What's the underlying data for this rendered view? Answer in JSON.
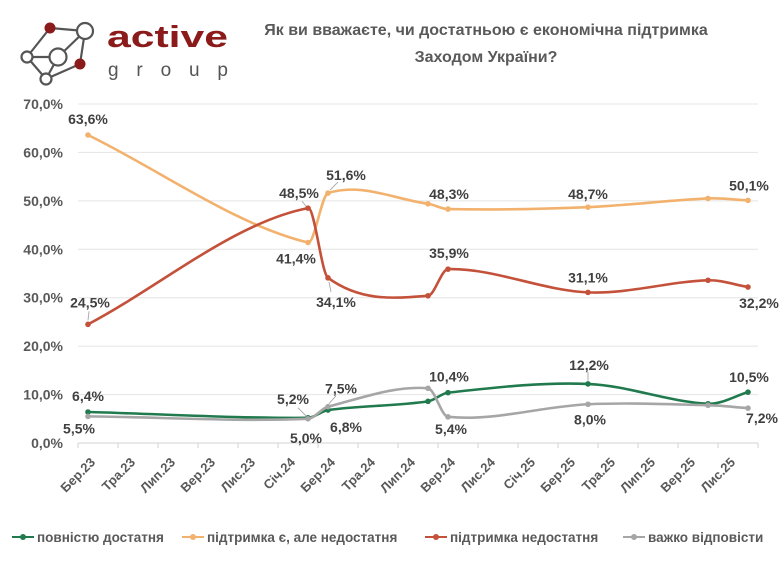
{
  "logo": {
    "brand_main": "active",
    "brand_sub": "group",
    "primary_color": "#8B1A1A",
    "secondary_color": "#555555"
  },
  "chart_data": {
    "type": "line",
    "title_lines": [
      "Як ви вважаєте, чи достатньою є економічна підтримка",
      "Заходом України?"
    ],
    "xlabel": "",
    "ylabel": "",
    "x_range": [
      "2023-03",
      "2025-12"
    ],
    "categories": [
      "Бер.23",
      "Тра.23",
      "Лип.23",
      "Вер.23",
      "Лис.23",
      "Січ.24",
      "Бер.24",
      "Тра.24",
      "Лип.24",
      "Вер.24",
      "Лис.24",
      "Січ.25",
      "Бер.25",
      "Тра.25",
      "Лип.25",
      "Вер.25",
      "Лис.25"
    ],
    "ylim": [
      0,
      70
    ],
    "yticks": [
      0,
      10,
      20,
      30,
      40,
      50,
      60,
      70
    ],
    "ytick_labels": [
      "0,0%",
      "10,0%",
      "20,0%",
      "30,0%",
      "40,0%",
      "50,0%",
      "60,0%",
      "70,0%"
    ],
    "grid": true,
    "legend": "bottom",
    "series": [
      {
        "name": "повністю достатня",
        "color": "#217A4E",
        "points": [
          {
            "x": "2023-03",
            "y": 6.4,
            "label": "6,4%"
          },
          {
            "x": "2024-02",
            "y": 5.2,
            "label": "5,2%"
          },
          {
            "x": "2024-03",
            "y": 6.8,
            "label": "6,8%"
          },
          {
            "x": "2024-08",
            "y": 8.6
          },
          {
            "x": "2024-09",
            "y": 10.4,
            "label": "10,4%"
          },
          {
            "x": "2025-04",
            "y": 12.2,
            "label": "12,2%"
          },
          {
            "x": "2025-10",
            "y": 8.1
          },
          {
            "x": "2025-12",
            "y": 10.5,
            "label": "10,5%"
          }
        ]
      },
      {
        "name": "підтримка є, але недостатня",
        "color": "#F2B26E",
        "points": [
          {
            "x": "2023-03",
            "y": 63.6,
            "label": "63,6%"
          },
          {
            "x": "2024-02",
            "y": 41.4,
            "label": "41,4%"
          },
          {
            "x": "2024-03",
            "y": 51.6,
            "label": "51,6%"
          },
          {
            "x": "2024-08",
            "y": 49.4
          },
          {
            "x": "2024-09",
            "y": 48.3,
            "label": "48,3%"
          },
          {
            "x": "2025-04",
            "y": 48.7,
            "label": "48,7%"
          },
          {
            "x": "2025-10",
            "y": 50.5
          },
          {
            "x": "2025-12",
            "y": 50.1,
            "label": "50,1%"
          }
        ]
      },
      {
        "name": "підтримка недостатня",
        "color": "#C4513A",
        "points": [
          {
            "x": "2023-03",
            "y": 24.5,
            "label": "24,5%"
          },
          {
            "x": "2024-02",
            "y": 48.5,
            "label": "48,5%"
          },
          {
            "x": "2024-03",
            "y": 34.1,
            "label": "34,1%"
          },
          {
            "x": "2024-08",
            "y": 30.4
          },
          {
            "x": "2024-09",
            "y": 35.9,
            "label": "35,9%"
          },
          {
            "x": "2025-04",
            "y": 31.1,
            "label": "31,1%"
          },
          {
            "x": "2025-10",
            "y": 33.6
          },
          {
            "x": "2025-12",
            "y": 32.2,
            "label": "32,2%"
          }
        ]
      },
      {
        "name": "важко відповісти",
        "color": "#A6A6A6",
        "points": [
          {
            "x": "2023-03",
            "y": 5.5,
            "label": "5,5%"
          },
          {
            "x": "2024-02",
            "y": 5.0,
            "label": "5,0%"
          },
          {
            "x": "2024-03",
            "y": 7.5,
            "label": "7,5%"
          },
          {
            "x": "2024-08",
            "y": 11.3
          },
          {
            "x": "2024-09",
            "y": 5.4,
            "label": "5,4%"
          },
          {
            "x": "2025-04",
            "y": 8.0,
            "label": "8,0%"
          },
          {
            "x": "2025-10",
            "y": 7.8
          },
          {
            "x": "2025-12",
            "y": 7.2,
            "label": "7,2%"
          }
        ]
      }
    ]
  }
}
